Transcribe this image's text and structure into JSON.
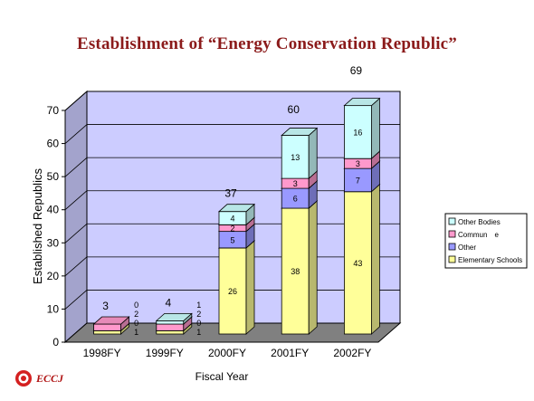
{
  "title": "Establishment of “Energy Conservation Republic”",
  "logo": {
    "text": "ECCJ"
  },
  "colors": {
    "background": "#ffffff",
    "wall": "#ccccff",
    "floor": "#808080",
    "elementary": "#ffff99",
    "other": "#9999ff",
    "commune": "#ff99cc",
    "other_bodies": "#ccffff",
    "title": "#8b1a1a"
  },
  "chart_data": {
    "type": "bar",
    "stacked": true,
    "three_d": true,
    "categories": [
      "1998FY",
      "1999FY",
      "2000FY",
      "2001FY",
      "2002FY"
    ],
    "series": [
      {
        "name": "Elementary Schools",
        "color": "#ffff99",
        "values": [
          1,
          1,
          26,
          38,
          43
        ],
        "labels": [
          "1",
          "1",
          "26",
          "38",
          "43"
        ]
      },
      {
        "name": "Other",
        "color": "#9999ff",
        "values": [
          0,
          0,
          5,
          6,
          7
        ],
        "labels": [
          "0",
          "0",
          "5",
          "6",
          "7"
        ]
      },
      {
        "name": "Commun　e",
        "color": "#ff99cc",
        "values": [
          2,
          2,
          2,
          3,
          3
        ],
        "labels": [
          "2",
          "2",
          "2",
          "3",
          "3"
        ]
      },
      {
        "name": "Other Bodies",
        "color": "#ccffff",
        "values": [
          0,
          1,
          4,
          13,
          16
        ],
        "labels": [
          "0",
          "1",
          "4",
          "13",
          "16"
        ]
      }
    ],
    "totals": [
      3,
      4,
      37,
      60,
      69
    ],
    "ylabel": "Established Republics",
    "xlabel": "Fiscal Year",
    "ylim": [
      0,
      70
    ],
    "yticks": [
      0,
      10,
      20,
      30,
      40,
      50,
      60,
      70
    ],
    "grid": true,
    "legend": "right"
  }
}
